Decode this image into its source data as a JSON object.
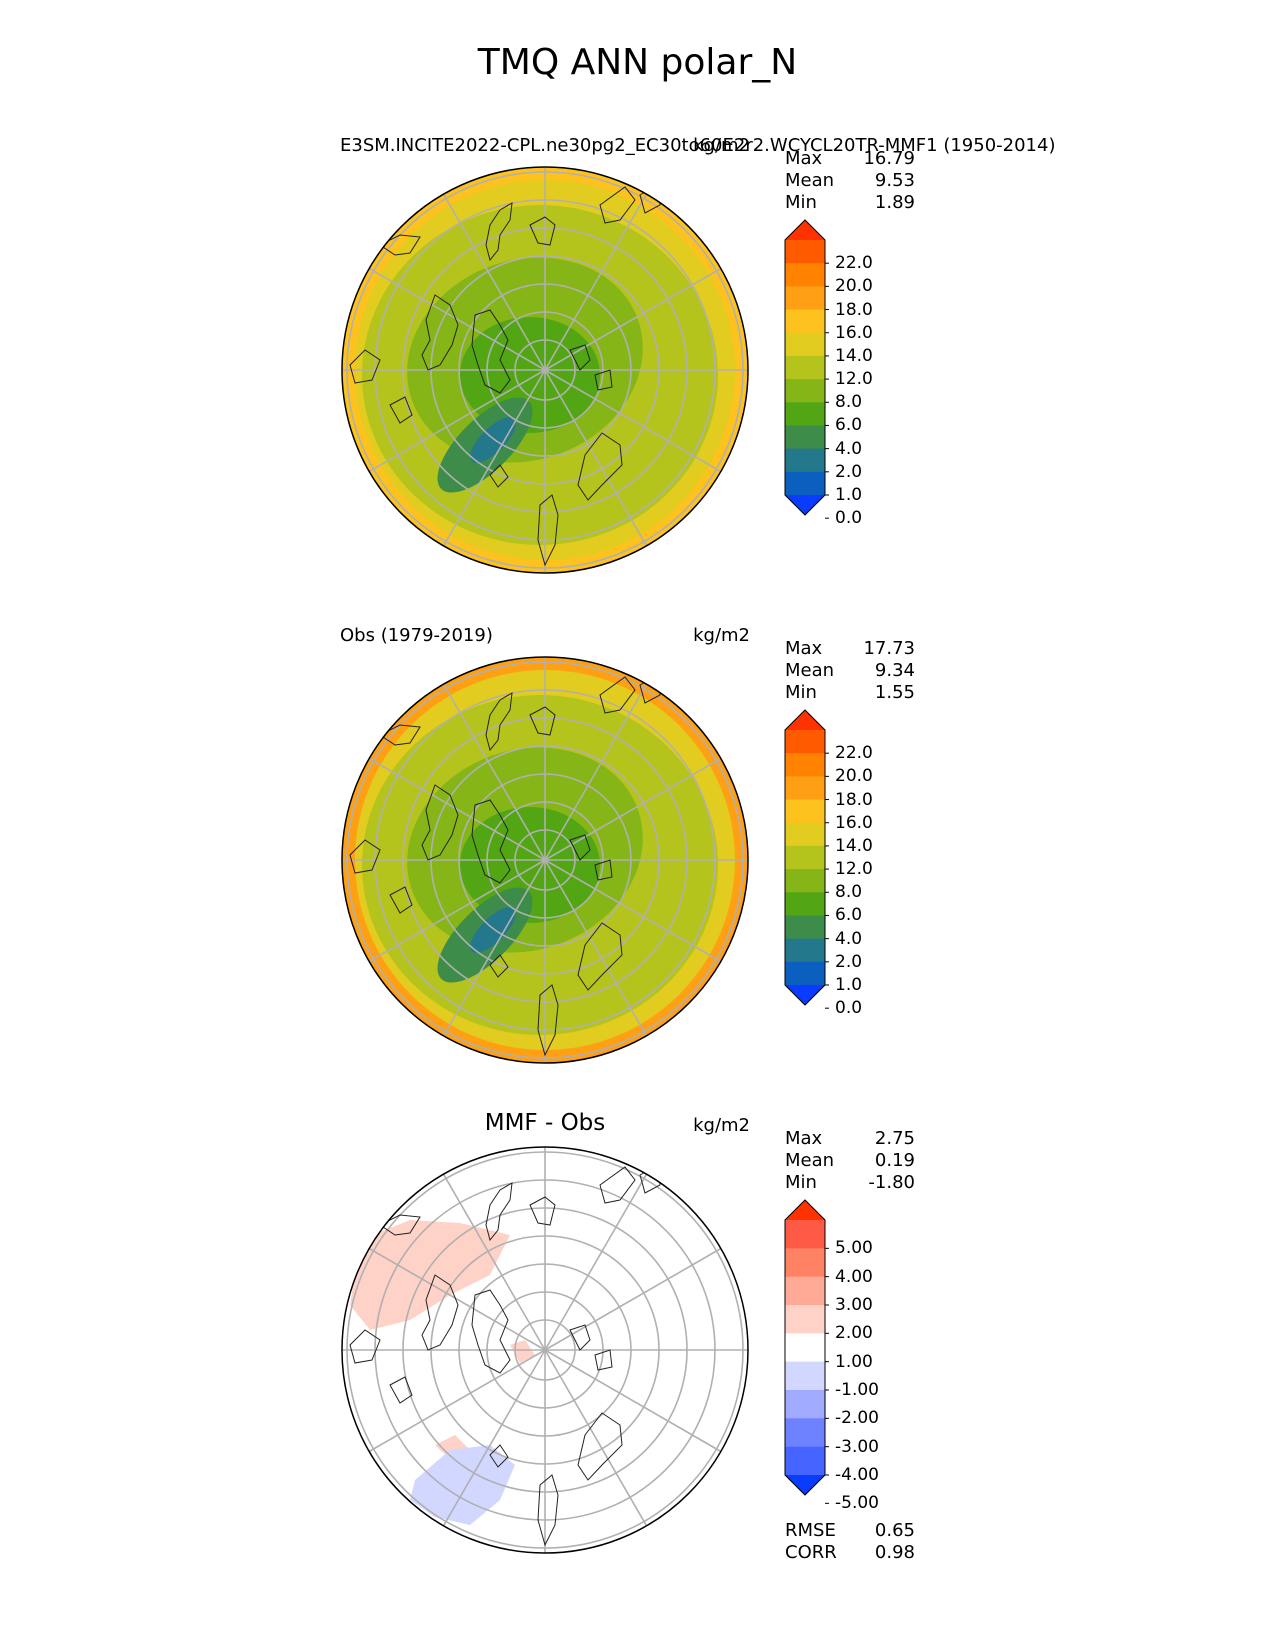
{
  "figure": {
    "title": "TMQ ANN polar_N"
  },
  "chart_data": [
    {
      "type": "heatmap",
      "projection": "north polar stereographic",
      "title_left": "E3SM.INCITE2022-CPL.ne30pg2_EC30to60E2r2.WCYCL20TR-MMF1 (1950-2014)",
      "units": "kg/m2",
      "stats": [
        {
          "label": "Max",
          "value": "16.79"
        },
        {
          "label": "Mean",
          "value": "9.53"
        },
        {
          "label": "Min",
          "value": "1.89"
        }
      ],
      "colorbar": {
        "ticks": [
          "22.0",
          "20.0",
          "18.0",
          "16.0",
          "14.0",
          "12.0",
          "8.0",
          "6.0",
          "4.0",
          "2.0",
          "1.0",
          "0.0"
        ],
        "colors": [
          "#ff3200",
          "#ff5a00",
          "#ff8200",
          "#ffa014",
          "#fdc21e",
          "#e1cc1f",
          "#b5c41d",
          "#86b518",
          "#52a614",
          "#3d8c4a",
          "#23798b",
          "#0a5fbf",
          "#0a3cff"
        ],
        "extend": "both"
      },
      "field": {
        "outer_ring": "#fdc21e",
        "mid_ring": "#e1cc1f",
        "bulk": "#b5c41d",
        "arctic_core": "#86b518",
        "pole": "#52a614",
        "greenland": "#3d8c4a",
        "greenland_core": "#23798b"
      }
    },
    {
      "type": "heatmap",
      "projection": "north polar stereographic",
      "title_left": "Obs (1979-2019)",
      "units": "kg/m2",
      "stats": [
        {
          "label": "Max",
          "value": "17.73"
        },
        {
          "label": "Mean",
          "value": "9.34"
        },
        {
          "label": "Min",
          "value": "1.55"
        }
      ],
      "colorbar": {
        "ticks": [
          "22.0",
          "20.0",
          "18.0",
          "16.0",
          "14.0",
          "12.0",
          "8.0",
          "6.0",
          "4.0",
          "2.0",
          "1.0",
          "0.0"
        ],
        "colors": [
          "#ff3200",
          "#ff5a00",
          "#ff8200",
          "#ffa014",
          "#fdc21e",
          "#e1cc1f",
          "#b5c41d",
          "#86b518",
          "#52a614",
          "#3d8c4a",
          "#23798b",
          "#0a5fbf",
          "#0a3cff"
        ],
        "extend": "both"
      },
      "field": {
        "outer_ring": "#ffa014",
        "mid_ring": "#e1cc1f",
        "bulk": "#b5c41d",
        "arctic_core": "#86b518",
        "pole": "#52a614",
        "greenland": "#3d8c4a",
        "greenland_core": "#23798b"
      }
    },
    {
      "type": "heatmap",
      "projection": "north polar stereographic",
      "title_center": "MMF - Obs",
      "units": "kg/m2",
      "stats": [
        {
          "label": "Max",
          "value": "2.75"
        },
        {
          "label": "Mean",
          "value": "0.19"
        },
        {
          "label": "Min",
          "value": "-1.80"
        }
      ],
      "colorbar": {
        "ticks": [
          "5.00",
          "4.00",
          "3.00",
          "2.00",
          "1.00",
          "-1.00",
          "-2.00",
          "-3.00",
          "-4.00",
          "-5.00"
        ],
        "colors": [
          "#ff3200",
          "#fe5a46",
          "#ff8264",
          "#ffaa96",
          "#ffd2c8",
          "#ffffff",
          "#d2d7ff",
          "#a0aaff",
          "#6e82ff",
          "#4664ff",
          "#0a3cff"
        ],
        "extend": "both"
      },
      "metrics": [
        {
          "label": "RMSE",
          "value": "0.65"
        },
        {
          "label": "CORR",
          "value": "0.98"
        }
      ],
      "field": {
        "positive": "#ffd2c8",
        "negative": "#d2d7ff"
      }
    }
  ]
}
